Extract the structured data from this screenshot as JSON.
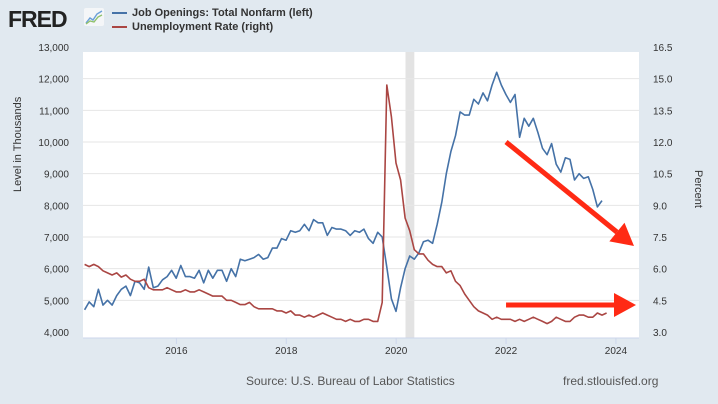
{
  "header": {
    "logo_text": "FRED",
    "logo_icon": "mini-line-chart-icon"
  },
  "footer": {
    "source": "Source: U.S. Bureau of Labor Statistics",
    "site": "fred.stlouisfed.org"
  },
  "colors": {
    "job_openings": "#4572a7",
    "unemployment": "#aa4643",
    "annotation_arrow": "#ff2a14",
    "recession_band": "#e3e3e3",
    "background": "#e1e9f0"
  },
  "chart_data": {
    "type": "line",
    "title": "",
    "xlabel": "",
    "ylabel_left": "Level in Thousands",
    "ylabel_right": "Percent",
    "x_ticks": [
      "2016",
      "2018",
      "2020",
      "2022",
      "2024"
    ],
    "y_left_ticks": [
      "4,000",
      "5,000",
      "6,000",
      "7,000",
      "8,000",
      "9,000",
      "10,000",
      "11,000",
      "12,000",
      "13,000"
    ],
    "y_right_ticks": [
      "3.0",
      "4.5",
      "6.0",
      "7.5",
      "9.0",
      "10.5",
      "12.0",
      "13.5",
      "15.0",
      "16.5"
    ],
    "xlim": [
      2014.3,
      2024.42
    ],
    "ylim_left": [
      4000,
      13000
    ],
    "ylim_right": [
      3.0,
      16.5
    ],
    "grid": true,
    "legend_position": "top-left",
    "recession": [
      2020.17,
      2020.33
    ],
    "x_start": 2014.33,
    "x_step_months": 1,
    "series": [
      {
        "name": "Job Openings: Total Nonfarm (left)",
        "axis": "left",
        "values": [
          4700,
          4950,
          4800,
          5350,
          4850,
          5000,
          4850,
          5150,
          5350,
          5450,
          5150,
          5600,
          5550,
          5350,
          6050,
          5400,
          5450,
          5650,
          5750,
          5950,
          5700,
          6100,
          5750,
          5750,
          5700,
          5950,
          5550,
          5950,
          5700,
          5950,
          5950,
          5600,
          6000,
          5750,
          6300,
          6250,
          6300,
          6350,
          6450,
          6300,
          6350,
          6650,
          6650,
          6950,
          6900,
          7200,
          7150,
          7200,
          7400,
          7200,
          7550,
          7450,
          7450,
          7050,
          7300,
          7250,
          7250,
          7200,
          7050,
          7200,
          7150,
          7250,
          6950,
          6800,
          7150,
          7000,
          6050,
          5050,
          4650,
          5400,
          6000,
          6400,
          6300,
          6500,
          6850,
          6900,
          6800,
          7400,
          8100,
          9000,
          9700,
          10200,
          10950,
          10850,
          10850,
          11350,
          11200,
          11550,
          11300,
          11800,
          12200,
          11800,
          11500,
          11250,
          11500,
          10150,
          10750,
          10500,
          10750,
          10300,
          9800,
          9600,
          9950,
          9300,
          9050,
          9500,
          9450,
          8800,
          9000,
          8850,
          8900,
          8500,
          7950,
          8150
        ]
      },
      {
        "name": "Unemployment Rate (right)",
        "axis": "right",
        "values": [
          6.2,
          6.1,
          6.2,
          6.1,
          5.9,
          5.8,
          5.7,
          5.8,
          5.6,
          5.7,
          5.5,
          5.4,
          5.4,
          5.5,
          5.1,
          5.0,
          5.0,
          5.0,
          5.1,
          5.0,
          4.9,
          4.9,
          5.0,
          4.9,
          4.9,
          5.0,
          4.9,
          4.8,
          4.7,
          4.7,
          4.7,
          4.5,
          4.5,
          4.4,
          4.3,
          4.3,
          4.4,
          4.2,
          4.1,
          4.1,
          4.1,
          4.1,
          4.0,
          4.0,
          3.9,
          4.0,
          3.8,
          3.8,
          3.7,
          3.8,
          3.7,
          3.8,
          3.9,
          3.8,
          3.7,
          3.6,
          3.6,
          3.5,
          3.6,
          3.5,
          3.5,
          3.6,
          3.6,
          3.5,
          3.5,
          4.4,
          14.7,
          13.2,
          11.0,
          10.2,
          8.4,
          7.8,
          6.9,
          6.7,
          6.7,
          6.4,
          6.2,
          6.1,
          6.1,
          5.8,
          5.9,
          5.4,
          5.2,
          4.8,
          4.5,
          4.2,
          4.0,
          3.9,
          3.8,
          3.6,
          3.7,
          3.6,
          3.6,
          3.6,
          3.5,
          3.6,
          3.5,
          3.6,
          3.7,
          3.6,
          3.5,
          3.4,
          3.5,
          3.7,
          3.6,
          3.5,
          3.5,
          3.7,
          3.8,
          3.8,
          3.7,
          3.7,
          3.9,
          3.8,
          3.9
        ]
      }
    ],
    "annotations": [
      {
        "type": "arrow",
        "description": "down-trend",
        "from": [
          2022.0,
          10000
        ],
        "to": [
          2024.42,
          7400
        ]
      },
      {
        "type": "arrow",
        "description": "flat",
        "from": [
          2022.0,
          4.6
        ],
        "to": [
          2024.42,
          4.6
        ]
      }
    ]
  }
}
